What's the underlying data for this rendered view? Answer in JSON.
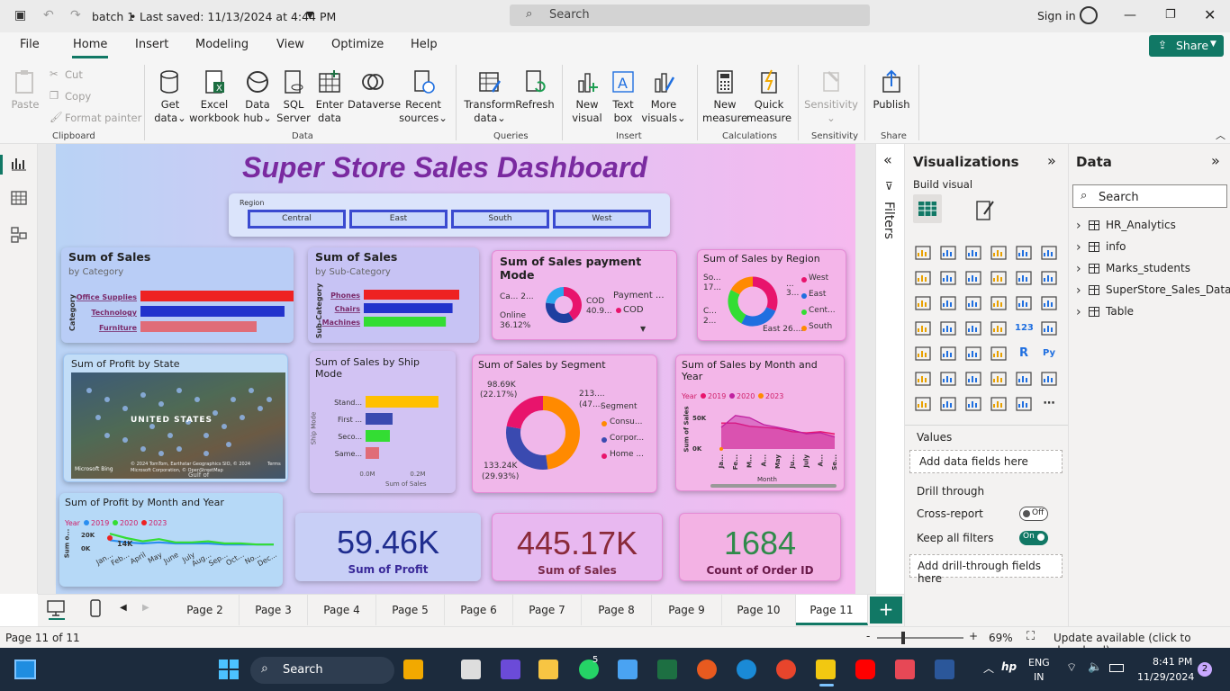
{
  "titlebar": {
    "file_title": "batch 1",
    "saved": "Last saved: 11/13/2024 at 4:44 PM",
    "search_placeholder": "Search",
    "signin": "Sign in"
  },
  "menu": {
    "items": [
      "File",
      "Home",
      "Insert",
      "Modeling",
      "View",
      "Optimize",
      "Help"
    ],
    "active": "Home",
    "share": "Share"
  },
  "ribbon": {
    "clipboard": {
      "paste": "Paste",
      "cut": "Cut",
      "copy": "Copy",
      "format_painter": "Format painter",
      "group": "Clipboard"
    },
    "data": {
      "get_data": [
        "Get",
        "data"
      ],
      "excel": [
        "Excel",
        "workbook"
      ],
      "data_hub": [
        "Data",
        "hub"
      ],
      "sql": [
        "SQL",
        "Server"
      ],
      "enter": [
        "Enter",
        "data"
      ],
      "dataverse": "Dataverse",
      "recent": [
        "Recent",
        "sources"
      ],
      "group": "Data"
    },
    "queries": {
      "transform": [
        "Transform",
        "data"
      ],
      "refresh": "Refresh",
      "group": "Queries"
    },
    "insert": {
      "new_visual": [
        "New",
        "visual"
      ],
      "text_box": [
        "Text",
        "box"
      ],
      "more_visuals": [
        "More",
        "visuals"
      ],
      "group": "Insert"
    },
    "calculations": {
      "new_measure": [
        "New",
        "measure"
      ],
      "quick_measure": [
        "Quick",
        "measure"
      ],
      "group": "Calculations"
    },
    "sensitivity": {
      "label": "Sensitivity",
      "group": "Sensitivity"
    },
    "share": {
      "publish": "Publish",
      "group": "Share"
    }
  },
  "dashboard": {
    "title": "Super Store Sales Dashboard",
    "region_slicer": {
      "label": "Region",
      "options": [
        "Central",
        "East",
        "South",
        "West"
      ]
    },
    "category_card": {
      "title": "Sum of Sales",
      "subtitle": "by Category",
      "axis": "Category"
    },
    "subcategory_card": {
      "title": "Sum of Sales",
      "subtitle": "by Sub-Category",
      "axis": "Sub-Category"
    },
    "payment_card": {
      "title": "Sum of Sales payment Mode",
      "legend_title": "Payment ...",
      "legend_item": "COD",
      "label_ca": "Ca... 2...",
      "label_cod": "COD",
      "label_cod_val": "40.9...",
      "label_online": "Online",
      "label_online_val": "36.12%"
    },
    "region_card": {
      "title": "Sum of Sales by Region",
      "legend": [
        "West",
        "East",
        "Cent...",
        "South"
      ],
      "label_so": "So...",
      "label_so_val": "17...",
      "label_c": "C...",
      "label_c_val": "2...",
      "label_3": "3...",
      "label_dots": "...",
      "label_east": "East 26...."
    },
    "state_card": {
      "title": "Sum of Profit by State",
      "map_label": "UNITED STATES",
      "bing": "Microsoft Bing",
      "credit": "© 2024 TomTom, Earthstar Geographics SIO, © 2024 Microsoft Corporation, © OpenStreetMap",
      "terms": "Terms",
      "gulf": "Gulf of"
    },
    "shipmode_card": {
      "title": "Sum of Sales by Ship Mode",
      "axis": "Ship Mode",
      "xaxis": "Sum of Sales"
    },
    "segment_card": {
      "title": "Sum of Sales by Segment",
      "legend_title": "Segment",
      "legend": [
        "Consu...",
        "Corpor...",
        "Home ..."
      ],
      "label_tl": "98.69K",
      "label_tl_pct": "(22.17%)",
      "label_tr": "213....",
      "label_tr_pct": "(47....",
      "label_bl": "133.24K",
      "label_bl_pct": "(29.93%)"
    },
    "month_sales_card": {
      "title": "Sum of Sales by Month and Year",
      "legend_title": "Year",
      "legend": [
        "2019",
        "2020",
        "2023"
      ],
      "ylabel": "Sum of Sales",
      "xlabel": "Month"
    },
    "month_profit_card": {
      "title": "Sum of Profit by Month and Year",
      "legend_title": "Year",
      "legend": [
        "2019",
        "2020",
        "2023"
      ],
      "ylabel": "Sum o...",
      "data_label": "14K"
    },
    "kpis": [
      {
        "value": "59.46K",
        "label": "Sum of Profit",
        "color": "#1f2d8f"
      },
      {
        "value": "445.17K",
        "label": "Sum of Sales",
        "color": "#8a2a3a"
      },
      {
        "value": "1684",
        "label": "Count of Order ID",
        "color": "#2f8a4a"
      }
    ]
  },
  "filters_label": "Filters",
  "visualizations": {
    "title": "Visualizations",
    "build_visual": "Build visual",
    "values": "Values",
    "values_placeholder": "Add data fields here",
    "drill_through": "Drill through",
    "cross_report": "Cross-report",
    "cross_report_state": "Off",
    "keep_filters": "Keep all filters",
    "keep_filters_state": "On",
    "drill_placeholder": "Add drill-through fields here"
  },
  "data_pane": {
    "title": "Data",
    "search_placeholder": "Search",
    "tables": [
      "HR_Analytics",
      "info",
      "Marks_students",
      "SuperStore_Sales_Datas...",
      "Table"
    ]
  },
  "pages": {
    "tabs": [
      "Page 2",
      "Page 3",
      "Page 4",
      "Page 5",
      "Page 6",
      "Page 7",
      "Page 8",
      "Page 9",
      "Page 10",
      "Page 11"
    ],
    "active": "Page 11"
  },
  "status": {
    "page_info": "Page 11 of 11",
    "zoom": "69%",
    "update": "Update available (click to download)"
  },
  "taskbar": {
    "search": "Search",
    "lang": [
      "ENG",
      "IN"
    ],
    "time": "8:41 PM",
    "date": "11/29/2024",
    "whatsapp_badge": "5",
    "notif_badge": "2"
  },
  "chart_data": [
    {
      "type": "bar",
      "title": "Sum of Sales",
      "subtitle": "by Category",
      "categories": [
        "Office Supplies",
        "Technology",
        "Furniture"
      ],
      "values": [
        100,
        93,
        75
      ],
      "colors": [
        "#ee2222",
        "#2233cc",
        "#e06c78"
      ]
    },
    {
      "type": "bar",
      "title": "Sum of Sales",
      "subtitle": "by Sub-Category",
      "categories": [
        "Phones",
        "Chairs",
        "Machines"
      ],
      "values": [
        100,
        93,
        86
      ],
      "colors": [
        "#ee2222",
        "#2233cc",
        "#33dd33"
      ]
    },
    {
      "type": "pie",
      "title": "Sum of Sales payment Mode",
      "categories": [
        "COD",
        "Online",
        "Cards"
      ],
      "values": [
        40.9,
        36.12,
        22.98
      ],
      "colors": [
        "#e8146c",
        "#1f3fa0",
        "#2aa7ee"
      ]
    },
    {
      "type": "pie",
      "title": "Sum of Sales by Region",
      "categories": [
        "West",
        "East",
        "Central",
        "South"
      ],
      "values": [
        31,
        26,
        25,
        17
      ],
      "colors": [
        "#e8146c",
        "#1f6fe0",
        "#33dd33",
        "#ff8a00"
      ]
    },
    {
      "type": "bar",
      "title": "Sum of Sales by Ship Mode",
      "categories": [
        "Stand...",
        "First ...",
        "Seco...",
        "Same..."
      ],
      "values": [
        0.27,
        0.1,
        0.09,
        0.05
      ],
      "colors": [
        "#ffc000",
        "#3a4ab0",
        "#33dd33",
        "#e06c78"
      ],
      "xlim": [
        0,
        0.3
      ],
      "xticks": [
        "0.0M",
        "0.2M"
      ]
    },
    {
      "type": "pie",
      "title": "Sum of Sales by Segment",
      "categories": [
        "Consumer",
        "Corporate",
        "Home Office"
      ],
      "values": [
        47.9,
        29.93,
        22.17
      ],
      "colors": [
        "#ff8a00",
        "#3a4ab0",
        "#e8146c"
      ]
    },
    {
      "type": "area",
      "title": "Sum of Sales by Month and Year",
      "categories": [
        "Ja...",
        "Fe...",
        "M...",
        "A...",
        "May",
        "Ju...",
        "July",
        "A...",
        "Se..."
      ],
      "yticks": [
        "50K",
        "0K"
      ],
      "series": [
        {
          "name": "2019",
          "values": [
            48,
            48,
            42,
            40,
            38,
            32,
            30,
            32,
            28
          ],
          "color": "#e8146c"
        },
        {
          "name": "2020",
          "values": [
            40,
            62,
            58,
            45,
            40,
            35,
            28,
            30,
            22
          ],
          "color": "#c020a0"
        },
        {
          "name": "2023",
          "values": [
            0,
            0,
            0,
            0,
            0,
            0,
            0,
            0,
            0
          ],
          "color": "#ff8a00"
        }
      ]
    },
    {
      "type": "line",
      "title": "Sum of Profit by Month and Year",
      "categories": [
        "Jan...",
        "Feb...",
        "April",
        "May",
        "June",
        "July",
        "Aug...",
        "Sep...",
        "Oct...",
        "No...",
        "Dec..."
      ],
      "yticks": [
        "20K",
        "0K"
      ],
      "series": [
        {
          "name": "2019",
          "values": [
            8,
            6,
            5,
            6,
            5,
            5,
            5,
            4,
            4,
            4,
            4
          ],
          "color": "#2a8ef0"
        },
        {
          "name": "2020",
          "values": [
            14,
            10,
            7,
            9,
            6,
            6,
            7,
            5,
            5,
            4,
            4
          ],
          "color": "#33dd33"
        },
        {
          "name": "2023",
          "values": [
            10,
            0,
            0,
            0,
            0,
            0,
            0,
            0,
            0,
            0,
            0
          ],
          "color": "#ee2222"
        }
      ]
    }
  ]
}
